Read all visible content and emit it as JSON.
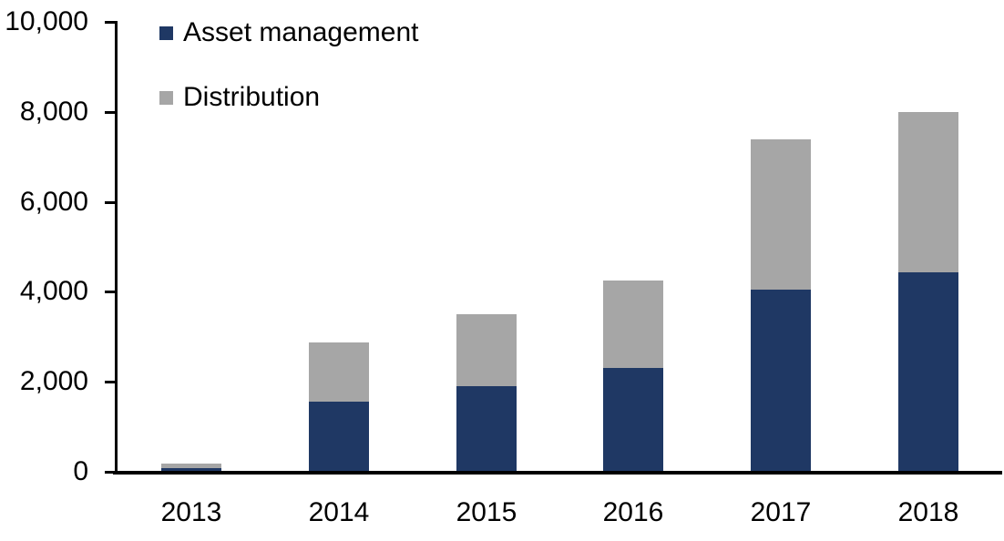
{
  "chart_data": {
    "type": "bar",
    "stacked": true,
    "title": "",
    "xlabel": "",
    "ylabel": "",
    "categories": [
      "2013",
      "2014",
      "2015",
      "2016",
      "2017",
      "2018"
    ],
    "series": [
      {
        "name": "Asset management",
        "color": "#1F3864",
        "values": [
          75,
          1550,
          1900,
          2300,
          4050,
          4430
        ]
      },
      {
        "name": "Distribution",
        "color": "#A6A6A6",
        "values": [
          100,
          1320,
          1600,
          1950,
          3350,
          3570
        ]
      }
    ],
    "totals": [
      175,
      2870,
      3500,
      4250,
      7400,
      8000
    ],
    "ylim": [
      0,
      10000
    ],
    "y_tick_interval": 2000,
    "y_tick_labels": [
      "0",
      "2,000",
      "4,000",
      "6,000",
      "8,000",
      "10,000"
    ],
    "legend_position": "top-left",
    "grid": false,
    "axis_color": "#000000",
    "background_color": "#FFFFFF"
  }
}
